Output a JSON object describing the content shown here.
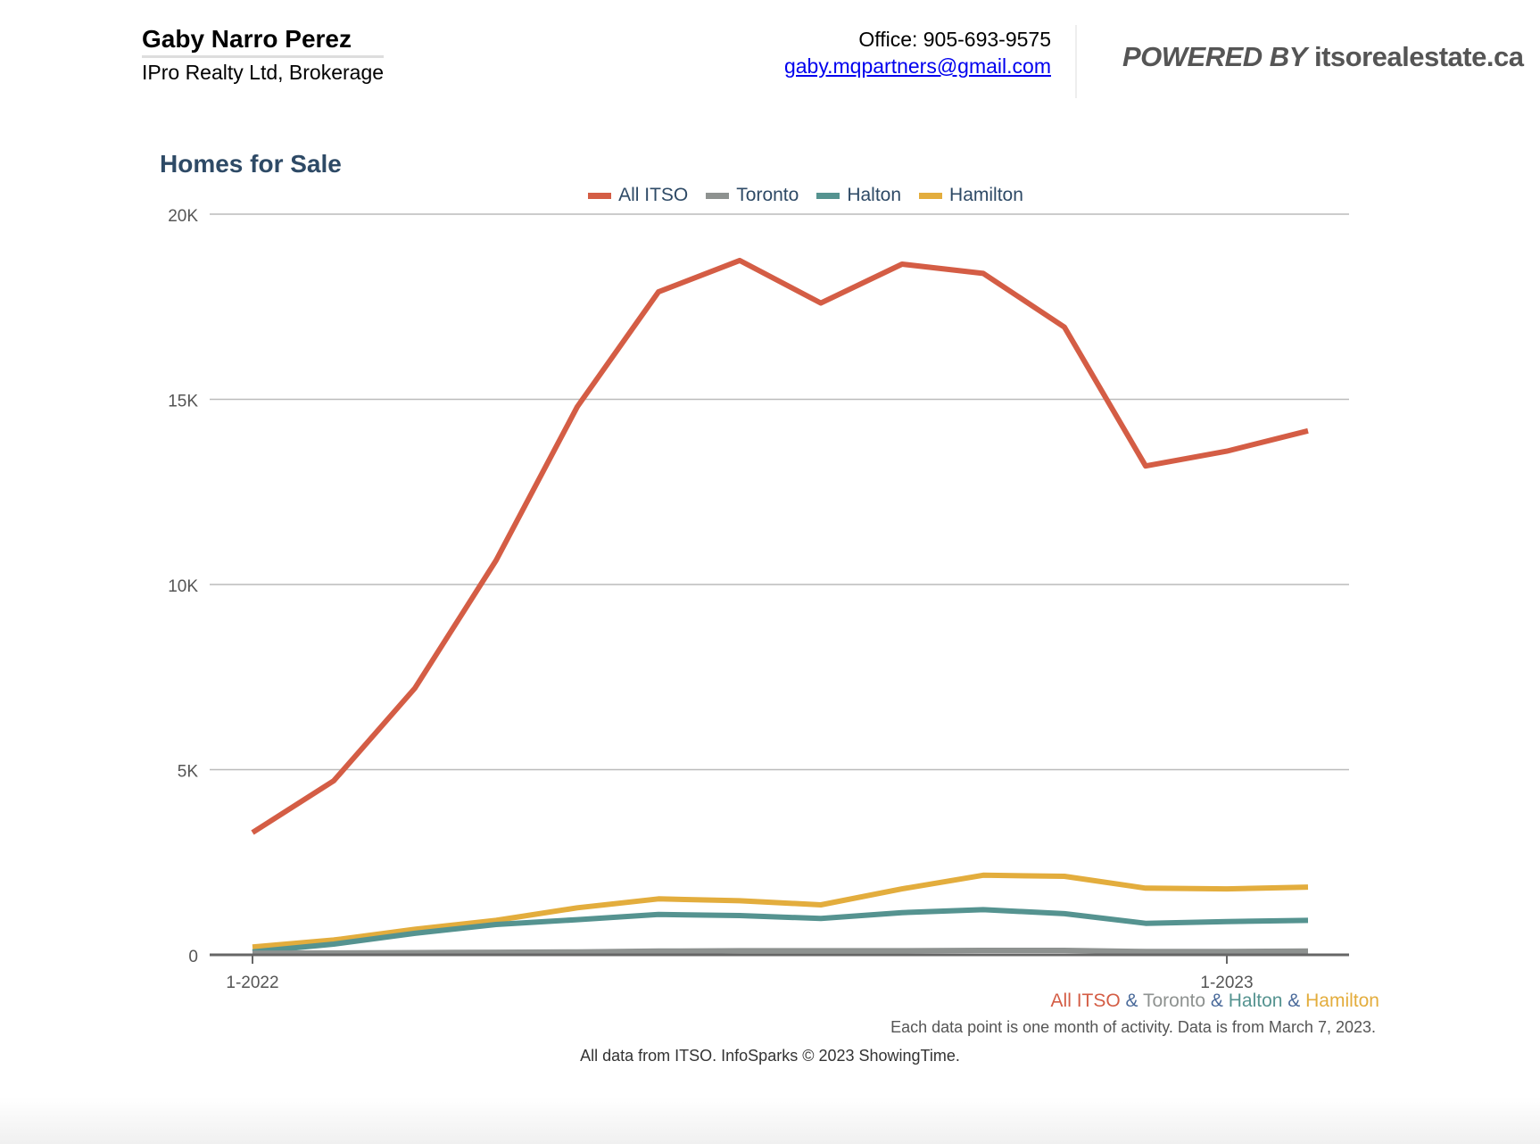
{
  "header": {
    "agent_name": "Gaby Narro Perez",
    "company": "IPro Realty Ltd, Brokerage",
    "office": "Office: 905-693-9575",
    "email": "gaby.mqpartners@gmail.com",
    "powered_by": "POWERED BY",
    "site": "itsorealestate.ca"
  },
  "chart_data": {
    "type": "line",
    "title": "Homes for Sale",
    "x": [
      "1-2022",
      "2-2022",
      "3-2022",
      "4-2022",
      "5-2022",
      "6-2022",
      "7-2022",
      "8-2022",
      "9-2022",
      "10-2022",
      "11-2022",
      "12-2022",
      "1-2023",
      "2-2023"
    ],
    "x_tick_labels": [
      "1-2022",
      "1-2023"
    ],
    "y_tick_labels": [
      "0",
      "5K",
      "10K",
      "15K",
      "20K"
    ],
    "ylim": [
      0,
      20000
    ],
    "grid": true,
    "legend": "top",
    "series": [
      {
        "name": "All ITSO",
        "color": "#d45d45",
        "values": [
          3300,
          4700,
          7200,
          10650,
          14800,
          17900,
          18750,
          17600,
          18650,
          18400,
          16950,
          13200,
          13600,
          14150
        ]
      },
      {
        "name": "Toronto",
        "color": "#8e9290",
        "values": [
          40,
          50,
          60,
          70,
          80,
          100,
          110,
          110,
          110,
          120,
          120,
          90,
          90,
          100
        ]
      },
      {
        "name": "Halton",
        "color": "#559390",
        "values": [
          80,
          290,
          580,
          820,
          950,
          1090,
          1060,
          980,
          1140,
          1220,
          1110,
          850,
          900,
          930
        ]
      },
      {
        "name": "Hamilton",
        "color": "#e3ad3d",
        "values": [
          210,
          400,
          690,
          930,
          1270,
          1510,
          1460,
          1350,
          1780,
          2150,
          2120,
          1800,
          1780,
          1830
        ]
      }
    ]
  },
  "footer": {
    "series_names": [
      "All ITSO",
      "Toronto",
      "Halton",
      "Hamilton"
    ],
    "separator": "&",
    "separator_color": "#4a6a9a",
    "note": "Each data point is one month of activity. Data is from March 7, 2023.",
    "source": "All data from ITSO. InfoSparks © 2023 ShowingTime."
  }
}
